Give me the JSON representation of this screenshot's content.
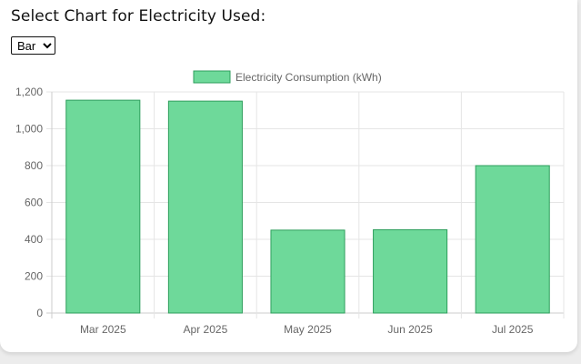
{
  "page": {
    "heading": "Select Chart for Electricity Used:",
    "chart_type_select": {
      "selected": "Bar",
      "options": [
        "Bar"
      ]
    }
  },
  "colors": {
    "bar_fill": "#6ed99a",
    "bar_border": "#2e9e5c",
    "grid": "#e5e5e5",
    "axis": "#cccccc",
    "tick_text": "#666666"
  },
  "chart_data": {
    "type": "bar",
    "categories": [
      "Mar 2025",
      "Apr 2025",
      "May 2025",
      "Jun 2025",
      "Jul 2025"
    ],
    "series": [
      {
        "name": "Electricity Consumption (kWh)",
        "values": [
          1155,
          1150,
          450,
          452,
          800
        ]
      }
    ],
    "ylim": [
      0,
      1200
    ],
    "y_ticks": [
      {
        "value": 0,
        "label": "0"
      },
      {
        "value": 200,
        "label": "200"
      },
      {
        "value": 400,
        "label": "400"
      },
      {
        "value": 600,
        "label": "600"
      },
      {
        "value": 800,
        "label": "800"
      },
      {
        "value": 1000,
        "label": "1,000"
      },
      {
        "value": 1200,
        "label": "1,200"
      }
    ],
    "grid": true,
    "legend": "top-center"
  }
}
